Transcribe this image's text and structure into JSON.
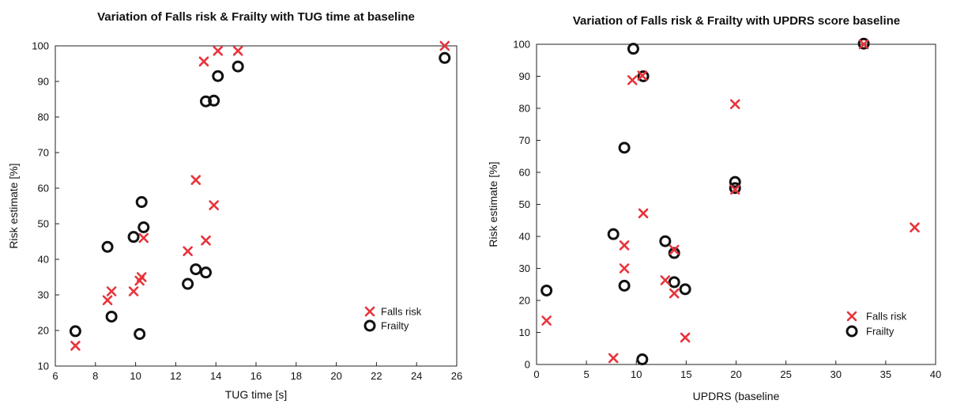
{
  "chart_data": [
    {
      "type": "scatter",
      "title": "Variation of Falls risk & Frailty with TUG time at baseline",
      "xlabel": "TUG time [s]",
      "ylabel": "Risk estimate [%]",
      "xlim": [
        6,
        26
      ],
      "ylim": [
        10,
        100
      ],
      "xticks": [
        6,
        8,
        10,
        12,
        14,
        16,
        18,
        20,
        22,
        24,
        26
      ],
      "yticks": [
        10,
        20,
        30,
        40,
        50,
        60,
        70,
        80,
        90,
        100
      ],
      "grid": false,
      "legend": "bottom-right",
      "series": [
        {
          "name": "Falls risk",
          "marker": "x",
          "color": "#e8333b",
          "points": [
            [
              7.0,
              15.7
            ],
            [
              8.6,
              28.5
            ],
            [
              8.8,
              31.0
            ],
            [
              9.9,
              31.0
            ],
            [
              10.2,
              34.0
            ],
            [
              10.3,
              35.0
            ],
            [
              10.4,
              46.0
            ],
            [
              12.6,
              42.3
            ],
            [
              13.0,
              62.3
            ],
            [
              13.5,
              45.3
            ],
            [
              13.9,
              55.2
            ],
            [
              13.4,
              95.6
            ],
            [
              14.1,
              98.6
            ],
            [
              15.1,
              98.6
            ],
            [
              25.4,
              100.0
            ]
          ]
        },
        {
          "name": "Frailty",
          "marker": "o",
          "color": "#111111",
          "points": [
            [
              7.0,
              19.8
            ],
            [
              8.6,
              43.5
            ],
            [
              8.8,
              23.9
            ],
            [
              9.9,
              46.3
            ],
            [
              10.2,
              19.0
            ],
            [
              10.3,
              56.1
            ],
            [
              10.4,
              49.0
            ],
            [
              12.6,
              33.1
            ],
            [
              13.0,
              37.2
            ],
            [
              13.5,
              36.3
            ],
            [
              13.5,
              84.4
            ],
            [
              13.9,
              84.6
            ],
            [
              14.1,
              91.5
            ],
            [
              15.1,
              94.2
            ],
            [
              25.4,
              96.6
            ]
          ]
        }
      ]
    },
    {
      "type": "scatter",
      "title": "Variation of Falls risk & Frailty with UPDRS score baseline",
      "xlabel": "UPDRS (baseline",
      "ylabel": "Risk estimate [%]",
      "xlim": [
        0,
        40
      ],
      "ylim": [
        0,
        100
      ],
      "xticks": [
        0,
        5,
        10,
        15,
        20,
        25,
        30,
        35,
        40
      ],
      "yticks": [
        0,
        10,
        20,
        30,
        40,
        50,
        60,
        70,
        80,
        90,
        100
      ],
      "grid": false,
      "legend": "bottom-right",
      "series": [
        {
          "name": "Falls risk",
          "marker": "x",
          "color": "#e8333b",
          "points": [
            [
              1.0,
              13.7
            ],
            [
              7.7,
              2.0
            ],
            [
              8.8,
              37.2
            ],
            [
              8.8,
              30.0
            ],
            [
              9.6,
              88.8
            ],
            [
              10.6,
              90.2
            ],
            [
              10.7,
              47.2
            ],
            [
              12.9,
              26.3
            ],
            [
              13.8,
              35.8
            ],
            [
              13.8,
              22.2
            ],
            [
              14.9,
              8.4
            ],
            [
              19.9,
              81.3
            ],
            [
              19.9,
              54.6
            ],
            [
              32.8,
              100.0
            ],
            [
              37.9,
              42.8
            ]
          ]
        },
        {
          "name": "Frailty",
          "marker": "o",
          "color": "#111111",
          "points": [
            [
              1.0,
              23.1
            ],
            [
              7.7,
              40.7
            ],
            [
              8.8,
              67.7
            ],
            [
              8.8,
              24.6
            ],
            [
              9.7,
              98.6
            ],
            [
              10.6,
              1.6
            ],
            [
              10.7,
              90.0
            ],
            [
              12.9,
              38.5
            ],
            [
              13.8,
              25.7
            ],
            [
              13.8,
              34.8
            ],
            [
              14.9,
              23.5
            ],
            [
              19.9,
              57.0
            ],
            [
              19.9,
              55.1
            ],
            [
              32.8,
              100.2
            ]
          ]
        }
      ]
    }
  ]
}
